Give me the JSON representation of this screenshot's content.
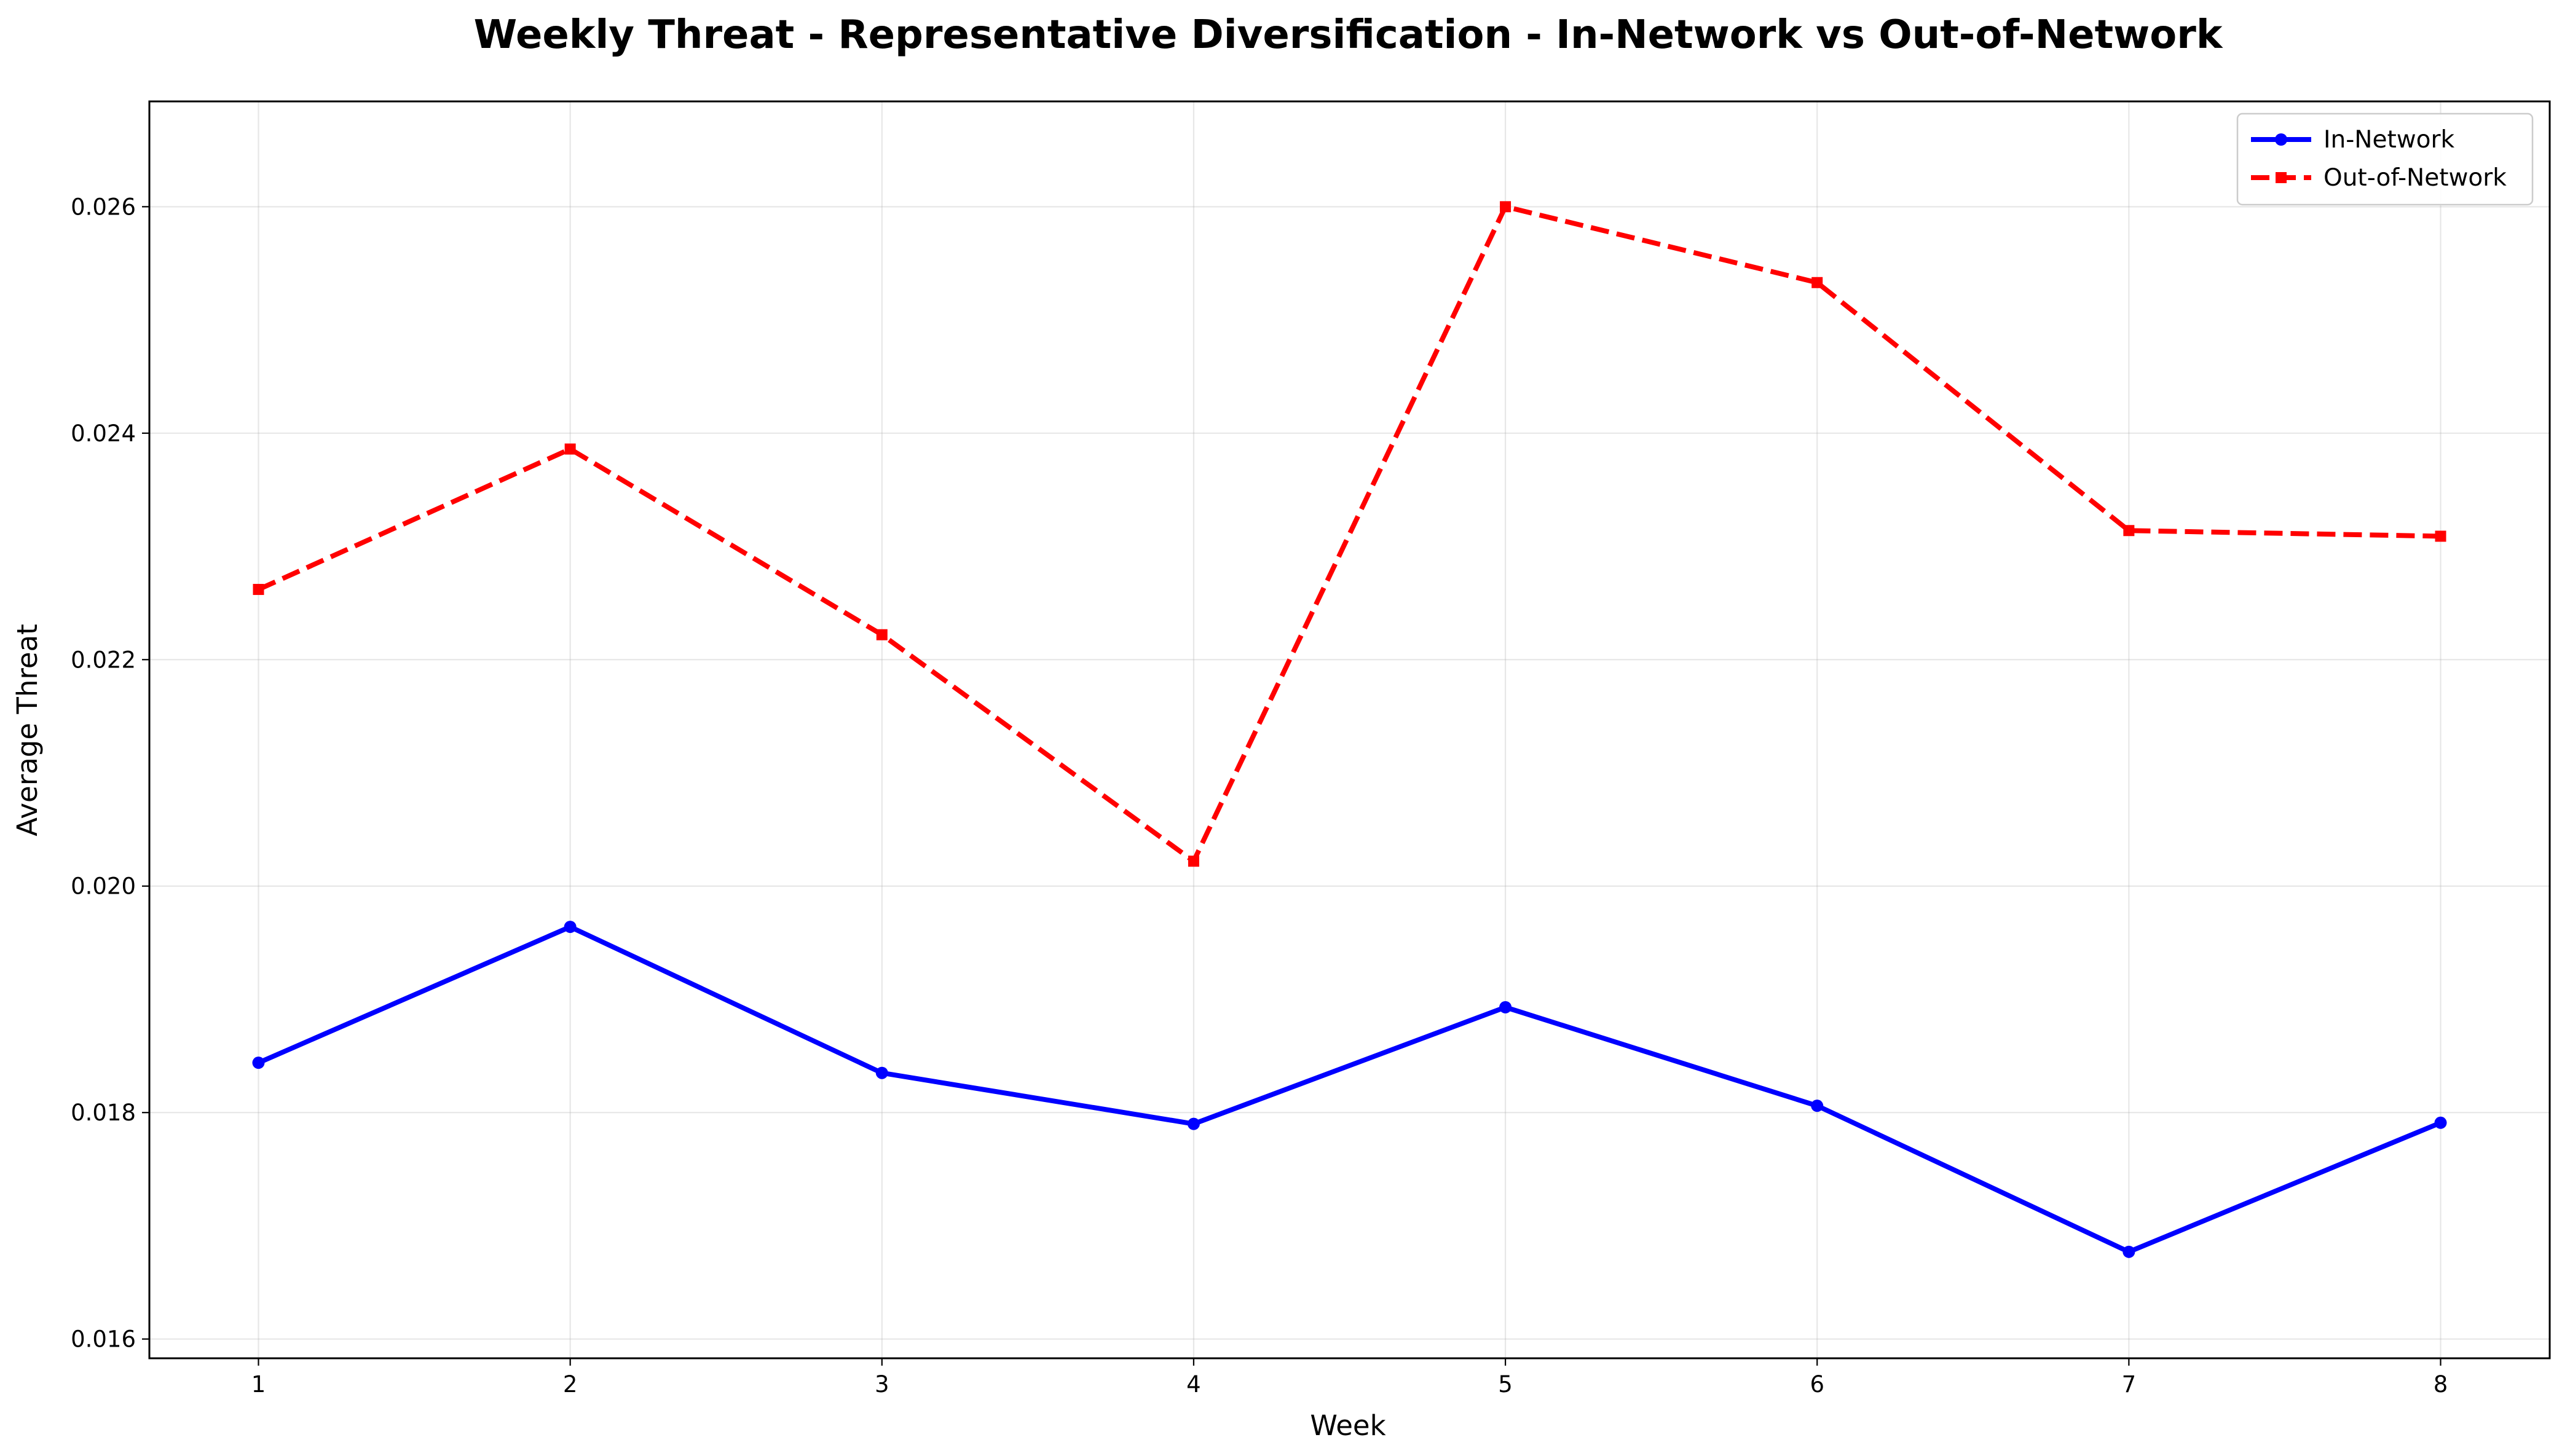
{
  "chart_data": {
    "type": "line",
    "title": "Weekly Threat - Representative Diversification - In-Network vs Out-of-Network",
    "xlabel": "Week",
    "ylabel": "Average Threat",
    "x": [
      1,
      2,
      3,
      4,
      5,
      6,
      7,
      8
    ],
    "xticks": [
      "1",
      "2",
      "3",
      "4",
      "5",
      "6",
      "7",
      "8"
    ],
    "xlim": [
      0.65,
      8.35
    ],
    "ylim": [
      0.01583,
      0.02693
    ],
    "yticks": [
      "0.016",
      "0.018",
      "0.020",
      "0.022",
      "0.024",
      "0.026"
    ],
    "grid": true,
    "legend_position": "top-right",
    "series": [
      {
        "name": "In-Network",
        "color": "#0000ff",
        "line_style": "solid",
        "marker": "circle",
        "values": [
          0.01844,
          0.01964,
          0.01835,
          0.0179,
          0.01893,
          0.01806,
          0.01677,
          0.01791
        ]
      },
      {
        "name": "Out-of-Network",
        "color": "#ff0000",
        "line_style": "dashed",
        "marker": "square",
        "values": [
          0.02262,
          0.02386,
          0.02222,
          0.02022,
          0.026,
          0.02533,
          0.02314,
          0.02309
        ]
      }
    ]
  }
}
